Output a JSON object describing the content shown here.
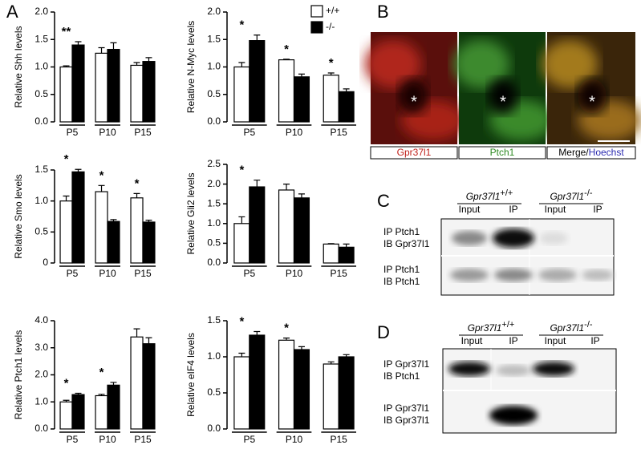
{
  "panel_labels": [
    "A",
    "B",
    "C",
    "D"
  ],
  "chart_data": [
    {
      "type": "bar",
      "ylabel": "Relative Shh levels",
      "categories": [
        "P5",
        "P10",
        "P15"
      ],
      "series": [
        {
          "color": "#ffffff",
          "values": [
            1.0,
            1.25,
            1.03
          ],
          "errors": [
            0.02,
            0.1,
            0.05
          ]
        },
        {
          "color": "#000000",
          "values": [
            1.4,
            1.32,
            1.1
          ],
          "errors": [
            0.06,
            0.12,
            0.07
          ]
        }
      ],
      "annotations": [
        "**",
        null,
        null
      ],
      "ylim": [
        0,
        2.0
      ],
      "yticks": [
        {
          "value": 0,
          "label": "0.0"
        },
        0.5,
        {
          "value": 1,
          "label": "1.0"
        },
        1.5,
        {
          "value": 2,
          "label": "2.0"
        }
      ]
    },
    {
      "type": "bar",
      "ylabel": "Relative N-Myc levels",
      "categories": [
        "P5",
        "P10",
        "P15"
      ],
      "series": [
        {
          "name": "+/+",
          "color": "#ffffff",
          "values": [
            1.0,
            1.13,
            0.85
          ],
          "errors": [
            0.08,
            0.01,
            0.04
          ]
        },
        {
          "name": "-/-",
          "color": "#000000",
          "values": [
            1.48,
            0.82,
            0.55
          ],
          "errors": [
            0.1,
            0.05,
            0.05
          ]
        }
      ],
      "annotations": [
        "*",
        "*",
        "*"
      ],
      "legend": "top-right",
      "ylim": [
        0,
        2.0
      ],
      "yticks": [
        {
          "value": 0,
          "label": "0.0"
        },
        0.5,
        {
          "value": 1,
          "label": "1.0"
        },
        1.5,
        {
          "value": 2,
          "label": "2.0"
        }
      ]
    },
    {
      "type": "bar",
      "ylabel": "Relative Smo levels",
      "categories": [
        "P5",
        "P10",
        "P15"
      ],
      "series": [
        {
          "color": "#ffffff",
          "values": [
            1.0,
            1.15,
            1.05
          ],
          "errors": [
            0.08,
            0.1,
            0.07
          ]
        },
        {
          "color": "#000000",
          "values": [
            1.47,
            0.67,
            0.66
          ],
          "errors": [
            0.04,
            0.03,
            0.03
          ]
        }
      ],
      "annotations": [
        "*",
        "*",
        "*"
      ],
      "ylim": [
        0,
        1.5
      ],
      "yticks": [
        0,
        0.5,
        {
          "value": 1,
          "label": "1.0"
        },
        1.5
      ]
    },
    {
      "type": "bar",
      "ylabel": "Relative Gli2 levels",
      "categories": [
        "P5",
        "P10",
        "P15"
      ],
      "series": [
        {
          "color": "#ffffff",
          "values": [
            1.0,
            1.85,
            0.48
          ],
          "errors": [
            0.17,
            0.15,
            0.01
          ]
        },
        {
          "color": "#000000",
          "values": [
            1.93,
            1.65,
            0.4
          ],
          "errors": [
            0.17,
            0.1,
            0.08
          ]
        }
      ],
      "annotations": [
        "*",
        null,
        null
      ],
      "ylim": [
        0,
        2.5
      ],
      "yticks": [
        {
          "value": 0,
          "label": "0.0"
        },
        0.5,
        {
          "value": 1,
          "label": "1.0"
        },
        1.5,
        {
          "value": 2,
          "label": "2.0"
        },
        2.5
      ]
    },
    {
      "type": "bar",
      "ylabel": "Relative Ptch1 levels",
      "categories": [
        "P5",
        "P10",
        "P15"
      ],
      "series": [
        {
          "color": "#ffffff",
          "values": [
            1.0,
            1.23,
            3.4
          ],
          "errors": [
            0.06,
            0.05,
            0.3
          ]
        },
        {
          "color": "#000000",
          "values": [
            1.27,
            1.62,
            3.15
          ],
          "errors": [
            0.05,
            0.1,
            0.22
          ]
        }
      ],
      "annotations": [
        "*",
        "*",
        null
      ],
      "ylim": [
        0,
        4.0
      ],
      "yticks": [
        {
          "value": 0,
          "label": "0.0"
        },
        {
          "value": 1,
          "label": "1.0"
        },
        {
          "value": 2,
          "label": "2.0"
        },
        {
          "value": 3,
          "label": "3.0"
        },
        {
          "value": 4,
          "label": "4.0"
        }
      ]
    },
    {
      "type": "bar",
      "ylabel": "Relative eIF4 levels",
      "categories": [
        "P5",
        "P10",
        "P15"
      ],
      "series": [
        {
          "color": "#ffffff",
          "values": [
            1.0,
            1.23,
            0.9
          ],
          "errors": [
            0.05,
            0.03,
            0.03
          ]
        },
        {
          "color": "#000000",
          "values": [
            1.3,
            1.1,
            1.0
          ],
          "errors": [
            0.05,
            0.04,
            0.03
          ]
        }
      ],
      "annotations": [
        "*",
        "*",
        null
      ],
      "ylim": [
        0,
        1.5
      ],
      "yticks": [
        {
          "value": 0,
          "label": "0.0"
        },
        0.5,
        {
          "value": 1,
          "label": "1.0"
        },
        1.5
      ]
    }
  ],
  "panel_b": {
    "image_marks": [
      "*",
      "*",
      "*"
    ],
    "labels": [
      "Gpr37l1",
      "Ptch1"
    ],
    "merge": "Merge/",
    "hoechst": "Hoechst"
  },
  "panel_c": {
    "genotypes": [
      {
        "gene": "Gpr37l1",
        "sup": "+/+"
      },
      {
        "gene": "Gpr37l1",
        "sup": "-/-"
      }
    ],
    "lanes": [
      "Input",
      "IP",
      "Input",
      "IP"
    ],
    "rows": [
      [
        "IP Ptch1",
        "IB Gpr37l1"
      ],
      [
        "IP Ptch1",
        "IB Ptch1"
      ]
    ]
  },
  "panel_d": {
    "genotypes": [
      {
        "gene": "Gpr37l1",
        "sup": "+/+"
      },
      {
        "gene": "Gpr37l1",
        "sup": "-/-"
      }
    ],
    "lanes": [
      "Input",
      "IP",
      "Input",
      "IP"
    ],
    "rows": [
      [
        "IP Gpr37l1",
        "IB Ptch1"
      ],
      [
        "IP Gpr37l1",
        "IB Gpr37l1"
      ]
    ]
  }
}
